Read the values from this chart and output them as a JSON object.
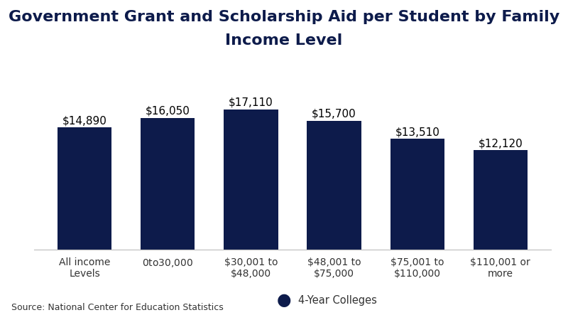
{
  "title_line1": "Government Grant and Scholarship Aid per Student by Family",
  "title_line2": "Income Level",
  "categories": [
    "All income\nLevels",
    "$0 to $30,000",
    "$30,001 to\n$48,000",
    "$48,001 to\n$75,000",
    "$75,001 to\n$110,000",
    "$110,001 or\nmore"
  ],
  "values": [
    14890,
    16050,
    17110,
    15700,
    13510,
    12120
  ],
  "labels": [
    "$14,890",
    "$16,050",
    "$17,110",
    "$15,700",
    "$13,510",
    "$12,120"
  ],
  "bar_color": "#0d1b4b",
  "background_color": "#ffffff",
  "ylim": [
    0,
    19500
  ],
  "title_fontsize": 16,
  "bar_label_fontsize": 11,
  "tick_label_fontsize": 10,
  "legend_label": "4-Year Colleges",
  "source_text": "Source: National Center for Education Statistics",
  "source_fontsize": 9,
  "title_color": "#0d1b4b",
  "bar_width": 0.65
}
